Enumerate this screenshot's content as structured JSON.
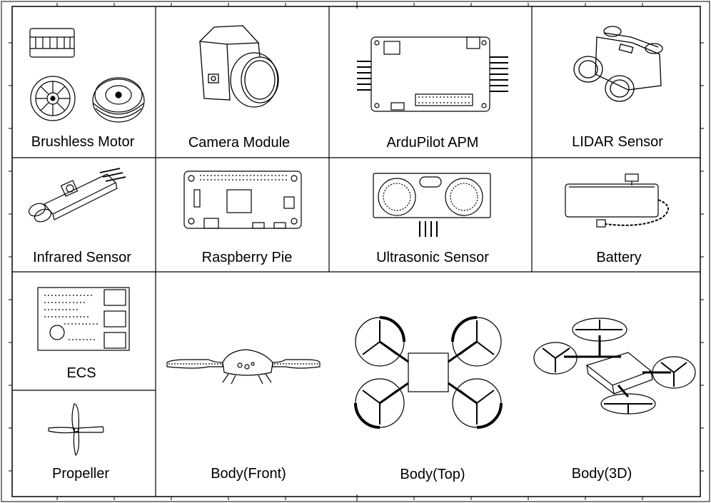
{
  "labels": {
    "brushless_motor": "Brushless Motor",
    "camera_module": "Camera Module",
    "ardupilot_apm": "ArduPilot APM",
    "lidar_sensor": "LIDAR Sensor",
    "infrared_sensor": "Infrared Sensor",
    "raspberry_pie": "Raspberry Pie",
    "ultrasonic_sensor": "Ultrasonic Sensor",
    "battery": "Battery",
    "ecs": "ECS",
    "propeller": "Propeller",
    "body_front": "Body(Front)",
    "body_top": "Body(Top)",
    "body_3d": "Body(3D)"
  }
}
